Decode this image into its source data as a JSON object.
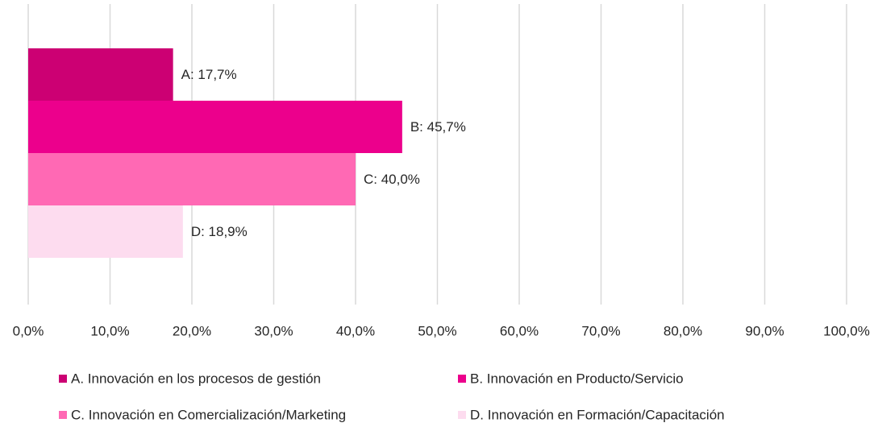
{
  "chart_data": {
    "type": "bar",
    "orientation": "horizontal",
    "categories": [
      null
    ],
    "series": [
      {
        "name": "A. Innovación en los procesos de gestión",
        "color": "#cc0073",
        "values": [
          17.7
        ],
        "value_labels": [
          "A: 17,7%"
        ]
      },
      {
        "name": "B. Innovación en Producto/Servicio",
        "color": "#ec008c",
        "values": [
          45.7
        ],
        "value_labels": [
          "B: 45,7%"
        ]
      },
      {
        "name": "C. Innovación en Comercialización/Marketing",
        "color": "#ff69b4",
        "values": [
          40.0
        ],
        "value_labels": [
          "C: 40,0%"
        ]
      },
      {
        "name": "D. Innovación en Formación/Capacitación",
        "color": "#fddcef",
        "values": [
          18.9
        ],
        "value_labels": [
          "D: 18,9%"
        ]
      }
    ],
    "xlim": [
      0,
      100
    ],
    "xticks": [
      {
        "value": 0,
        "label": "0,0%"
      },
      {
        "value": 10,
        "label": "10,0%"
      },
      {
        "value": 20,
        "label": "20,0%"
      },
      {
        "value": 30,
        "label": "30,0%"
      },
      {
        "value": 40,
        "label": "40,0%"
      },
      {
        "value": 50,
        "label": "50,0%"
      },
      {
        "value": 60,
        "label": "60,0%"
      },
      {
        "value": 70,
        "label": "70,0%"
      },
      {
        "value": 80,
        "label": "80,0%"
      },
      {
        "value": 90,
        "label": "90,0%"
      },
      {
        "value": 100,
        "label": "100,0%"
      }
    ],
    "grid": true,
    "legend": "bottom"
  }
}
